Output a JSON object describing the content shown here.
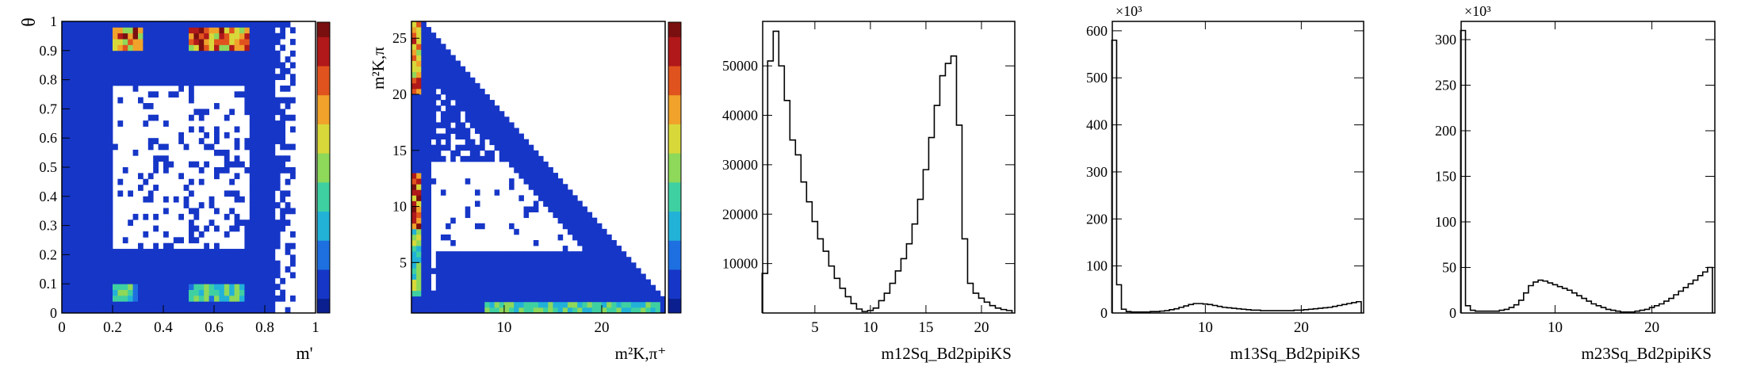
{
  "chart_data": [
    {
      "type": "heatmap",
      "xlabel": "m'",
      "ylabel": "θ",
      "xlim": [
        0,
        1
      ],
      "ylim": [
        0,
        1
      ],
      "xticks": [
        "0",
        "0.2",
        "0.4",
        "0.6",
        "0.8",
        "1"
      ],
      "yticks": [
        "0",
        "0.1",
        "0.2",
        "0.3",
        "0.4",
        "0.5",
        "0.6",
        "0.7",
        "0.8",
        "0.9",
        "1"
      ],
      "colorbar": true,
      "grid": false
    },
    {
      "type": "heatmap",
      "xlabel": "m²K,π⁺",
      "ylabel": "m²K,π",
      "xlim": [
        0.5,
        26.5
      ],
      "ylim": [
        0.5,
        26.5
      ],
      "xticks": [
        "10",
        "20"
      ],
      "yticks": [
        "5",
        "10",
        "15",
        "20",
        "25"
      ],
      "colorbar": true,
      "grid": false
    },
    {
      "type": "line",
      "xlabel": "m12Sq_Bd2pipiKS",
      "xlim": [
        0.3,
        23.0
      ],
      "ylim": [
        0,
        59000
      ],
      "xticks": [
        "5",
        "10",
        "15",
        "20"
      ],
      "yticks": [
        "10000",
        "20000",
        "30000",
        "40000",
        "50000"
      ],
      "x": [
        0.5,
        1.0,
        1.5,
        2.0,
        2.5,
        3.0,
        3.5,
        4.0,
        4.5,
        5.0,
        5.5,
        6.0,
        6.5,
        7.0,
        7.5,
        8.0,
        8.5,
        9.0,
        9.5,
        10.0,
        10.5,
        11.0,
        11.5,
        12.0,
        12.5,
        13.0,
        13.5,
        14.0,
        14.5,
        15.0,
        15.5,
        16.0,
        16.5,
        17.0,
        17.5,
        18.0,
        18.5,
        19.0,
        19.5,
        20.0,
        20.5,
        21.0,
        21.5,
        22.0,
        22.5
      ],
      "values": [
        8000,
        51000,
        57000,
        50000,
        43000,
        35000,
        32000,
        26500,
        22500,
        18500,
        15000,
        12500,
        9500,
        7000,
        5000,
        3300,
        1900,
        800,
        300,
        500,
        1000,
        2500,
        4000,
        6000,
        8500,
        11000,
        14000,
        18000,
        23000,
        29000,
        35500,
        42000,
        48000,
        50500,
        52000,
        38000,
        15000,
        6000,
        4000,
        3000,
        2200,
        1500,
        1000,
        700,
        500
      ],
      "grid": false
    },
    {
      "type": "line",
      "xlabel": "m13Sq_Bd2pipiKS",
      "ymultiplier": "×10³",
      "xlim": [
        0.3,
        26.5
      ],
      "ylim": [
        0,
        620
      ],
      "xticks": [
        "10",
        "20"
      ],
      "yticks": [
        "0",
        "100",
        "200",
        "300",
        "400",
        "500",
        "600"
      ],
      "x": [
        0.5,
        1.0,
        1.5,
        2.0,
        2.5,
        3.0,
        3.5,
        4.0,
        4.5,
        5.0,
        5.5,
        6.0,
        6.5,
        7.0,
        7.5,
        8.0,
        8.5,
        9.0,
        9.5,
        10.0,
        10.5,
        11.0,
        11.5,
        12.0,
        12.5,
        13.0,
        13.5,
        14.0,
        14.5,
        15.0,
        15.5,
        16.0,
        16.5,
        17.0,
        17.5,
        18.0,
        18.5,
        19.0,
        19.5,
        20.0,
        20.5,
        21.0,
        21.5,
        22.0,
        22.5,
        23.0,
        23.5,
        24.0,
        24.5,
        25.0,
        25.5,
        26.0
      ],
      "values": [
        580,
        60,
        8,
        3,
        2,
        2,
        2,
        2,
        3,
        3,
        4,
        5,
        7,
        9,
        12,
        15,
        18,
        20,
        20,
        19,
        18,
        16,
        14,
        12,
        11,
        10,
        9,
        8,
        7,
        6,
        6,
        5,
        5,
        5,
        5,
        5,
        5,
        5,
        6,
        6,
        7,
        8,
        9,
        10,
        11,
        12,
        14,
        16,
        18,
        20,
        22,
        24
      ],
      "grid": false
    },
    {
      "type": "line",
      "xlabel": "m23Sq_Bd2pipiKS",
      "ymultiplier": "×10³",
      "xlim": [
        0.3,
        26.5
      ],
      "ylim": [
        0,
        320
      ],
      "xticks": [
        "10",
        "20"
      ],
      "yticks": [
        "0",
        "50",
        "100",
        "150",
        "200",
        "250",
        "300"
      ],
      "x": [
        0.5,
        1.0,
        1.5,
        2.0,
        2.5,
        3.0,
        3.5,
        4.0,
        4.5,
        5.0,
        5.5,
        6.0,
        6.5,
        7.0,
        7.5,
        8.0,
        8.5,
        9.0,
        9.5,
        10.0,
        10.5,
        11.0,
        11.5,
        12.0,
        12.5,
        13.0,
        13.5,
        14.0,
        14.5,
        15.0,
        15.5,
        16.0,
        16.5,
        17.0,
        17.5,
        18.0,
        18.5,
        19.0,
        19.5,
        20.0,
        20.5,
        21.0,
        21.5,
        22.0,
        22.5,
        23.0,
        23.5,
        24.0,
        24.5,
        25.0,
        25.5,
        26.0
      ],
      "values": [
        310,
        8,
        3,
        2,
        2,
        2,
        2,
        2,
        3,
        4,
        6,
        9,
        14,
        22,
        30,
        34,
        36,
        35,
        33,
        31,
        29,
        27,
        25,
        22,
        19,
        16,
        13,
        10,
        8,
        6,
        4,
        3,
        2,
        1,
        1,
        1,
        2,
        3,
        4,
        6,
        8,
        10,
        13,
        16,
        20,
        24,
        28,
        32,
        36,
        41,
        45,
        50
      ],
      "grid": false
    }
  ]
}
